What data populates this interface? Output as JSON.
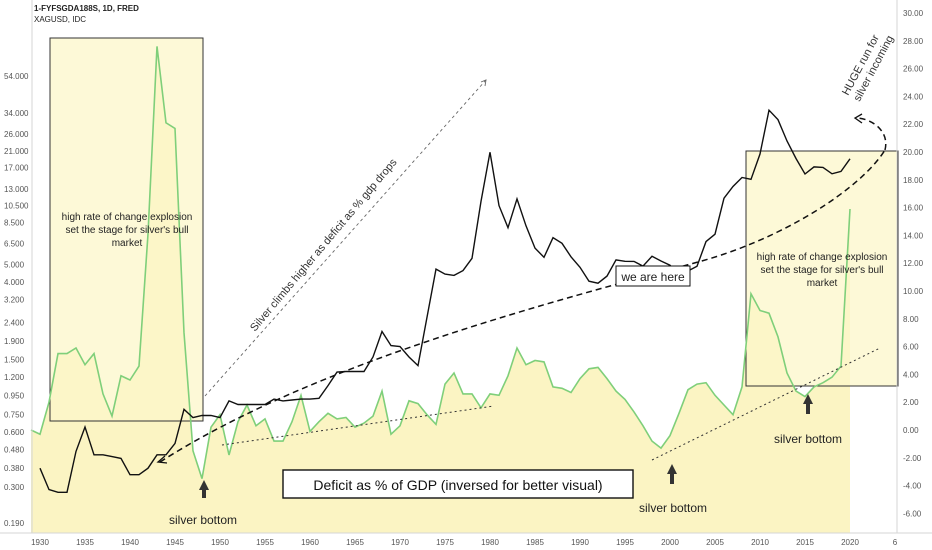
{
  "header": {
    "title": "1-FYFSGDA188S, 1D, FRED",
    "subtitle": "XAGUSD, IDC"
  },
  "colors": {
    "deficit_line": "#7fcf7a",
    "deficit_fill": "#fbf3bd",
    "silver_line": "#111111",
    "box_fill": "#fcf7c9",
    "box_stroke": "#333333"
  },
  "chart_data": {
    "type": "line",
    "x_ticks": [
      "1930",
      "1935",
      "1940",
      "1945",
      "1950",
      "1955",
      "1960",
      "1965",
      "1970",
      "1975",
      "1980",
      "1985",
      "1990",
      "1995",
      "2000",
      "2005",
      "2010",
      "2015",
      "2020",
      "6"
    ],
    "left_axis": {
      "scale": "log",
      "tick_labels": [
        "54.000",
        "34.000",
        "26.000",
        "21.000",
        "17.000",
        "13.000",
        "10.500",
        "8.500",
        "6.500",
        "5.000",
        "4.000",
        "3.200",
        "2.400",
        "1.900",
        "1.500",
        "1.200",
        "0.950",
        "0.750",
        "0.600",
        "0.480",
        "0.380",
        "0.300",
        "0.190"
      ]
    },
    "right_axis": {
      "tick_labels": [
        "30.00",
        "28.00",
        "26.00",
        "24.00",
        "22.00",
        "20.00",
        "18.00",
        "16.00",
        "14.00",
        "12.00",
        "10.00",
        "8.00",
        "6.00",
        "4.00",
        "2.00",
        "0.00",
        "-2.00",
        "-4.00",
        "-6.00"
      ]
    },
    "series": [
      {
        "name": "XAGUSD",
        "points": [
          [
            1930,
            0.38
          ],
          [
            1931,
            0.29
          ],
          [
            1932,
            0.28
          ],
          [
            1933,
            0.28
          ],
          [
            1934,
            0.47
          ],
          [
            1935,
            0.64
          ],
          [
            1936,
            0.45
          ],
          [
            1937,
            0.45
          ],
          [
            1938,
            0.44
          ],
          [
            1939,
            0.43
          ],
          [
            1940,
            0.35
          ],
          [
            1941,
            0.35
          ],
          [
            1942,
            0.38
          ],
          [
            1943,
            0.45
          ],
          [
            1944,
            0.45
          ],
          [
            1945,
            0.52
          ],
          [
            1946,
            0.8
          ],
          [
            1947,
            0.72
          ],
          [
            1948,
            0.74
          ],
          [
            1949,
            0.74
          ],
          [
            1950,
            0.72
          ],
          [
            1951,
            0.89
          ],
          [
            1952,
            0.85
          ],
          [
            1953,
            0.85
          ],
          [
            1954,
            0.85
          ],
          [
            1955,
            0.85
          ],
          [
            1956,
            0.91
          ],
          [
            1957,
            0.89
          ],
          [
            1958,
            0.9
          ],
          [
            1959,
            0.91
          ],
          [
            1960,
            0.91
          ],
          [
            1961,
            0.92
          ],
          [
            1962,
            1.08
          ],
          [
            1963,
            1.28
          ],
          [
            1964,
            1.29
          ],
          [
            1965,
            1.29
          ],
          [
            1966,
            1.29
          ],
          [
            1967,
            1.55
          ],
          [
            1968,
            2.14
          ],
          [
            1969,
            1.79
          ],
          [
            1970,
            1.77
          ],
          [
            1971,
            1.55
          ],
          [
            1972,
            1.39
          ],
          [
            1973,
            2.56
          ],
          [
            1974,
            4.71
          ],
          [
            1975,
            4.42
          ],
          [
            1976,
            4.35
          ],
          [
            1977,
            4.62
          ],
          [
            1978,
            5.4
          ],
          [
            1979,
            11.09
          ],
          [
            1980,
            20.63
          ],
          [
            1981,
            10.52
          ],
          [
            1982,
            7.95
          ],
          [
            1983,
            11.44
          ],
          [
            1984,
            8.14
          ],
          [
            1985,
            6.14
          ],
          [
            1986,
            5.47
          ],
          [
            1987,
            7.01
          ],
          [
            1988,
            6.53
          ],
          [
            1989,
            5.5
          ],
          [
            1990,
            4.82
          ],
          [
            1991,
            4.04
          ],
          [
            1992,
            3.94
          ],
          [
            1993,
            4.31
          ],
          [
            1994,
            5.29
          ],
          [
            1995,
            5.2
          ],
          [
            1996,
            5.19
          ],
          [
            1997,
            4.89
          ],
          [
            1998,
            5.54
          ],
          [
            1999,
            5.22
          ],
          [
            2000,
            4.95
          ],
          [
            2001,
            4.37
          ],
          [
            2002,
            4.6
          ],
          [
            2003,
            4.88
          ],
          [
            2004,
            6.67
          ],
          [
            2005,
            7.32
          ],
          [
            2006,
            11.55
          ],
          [
            2007,
            13.38
          ],
          [
            2008,
            14.99
          ],
          [
            2009,
            14.67
          ],
          [
            2010,
            20.19
          ],
          [
            2011,
            35.12
          ],
          [
            2012,
            31.15
          ],
          [
            2013,
            23.79
          ],
          [
            2014,
            19.08
          ],
          [
            2015,
            15.68
          ],
          [
            2016,
            17.14
          ],
          [
            2017,
            17.05
          ],
          [
            2018,
            15.71
          ],
          [
            2019,
            16.21
          ],
          [
            2020,
            19.0
          ]
        ]
      },
      {
        "name": "Deficit as % of GDP (inversed)",
        "points": [
          [
            1929,
            0.0
          ],
          [
            1930,
            -0.3
          ],
          [
            1931,
            2.0
          ],
          [
            1932,
            5.5
          ],
          [
            1933,
            5.5
          ],
          [
            1934,
            5.9
          ],
          [
            1935,
            4.7
          ],
          [
            1936,
            5.5
          ],
          [
            1937,
            2.6
          ],
          [
            1938,
            1.0
          ],
          [
            1939,
            3.9
          ],
          [
            1940,
            3.6
          ],
          [
            1941,
            4.6
          ],
          [
            1942,
            14.1
          ],
          [
            1943,
            27.6
          ],
          [
            1944,
            22.1
          ],
          [
            1945,
            21.7
          ],
          [
            1946,
            7.0
          ],
          [
            1947,
            -1.5
          ],
          [
            1948,
            -3.5
          ],
          [
            1949,
            0.2
          ],
          [
            1950,
            1.1
          ],
          [
            1951,
            -1.8
          ],
          [
            1952,
            0.6
          ],
          [
            1953,
            1.8
          ],
          [
            1954,
            0.3
          ],
          [
            1955,
            0.8
          ],
          [
            1956,
            -0.8
          ],
          [
            1957,
            -0.8
          ],
          [
            1958,
            0.6
          ],
          [
            1959,
            2.5
          ],
          [
            1960,
            -0.1
          ],
          [
            1961,
            0.6
          ],
          [
            1962,
            1.2
          ],
          [
            1963,
            0.8
          ],
          [
            1964,
            0.9
          ],
          [
            1965,
            0.2
          ],
          [
            1966,
            0.5
          ],
          [
            1967,
            1.0
          ],
          [
            1968,
            2.8
          ],
          [
            1969,
            -0.3
          ],
          [
            1970,
            0.3
          ],
          [
            1971,
            2.1
          ],
          [
            1972,
            1.9
          ],
          [
            1973,
            1.1
          ],
          [
            1974,
            0.4
          ],
          [
            1975,
            3.3
          ],
          [
            1976,
            4.1
          ],
          [
            1977,
            2.6
          ],
          [
            1978,
            2.6
          ],
          [
            1979,
            1.6
          ],
          [
            1980,
            2.6
          ],
          [
            1981,
            2.5
          ],
          [
            1982,
            3.9
          ],
          [
            1983,
            5.9
          ],
          [
            1984,
            4.7
          ],
          [
            1985,
            5.0
          ],
          [
            1986,
            4.9
          ],
          [
            1987,
            3.1
          ],
          [
            1988,
            3.0
          ],
          [
            1989,
            2.7
          ],
          [
            1990,
            3.7
          ],
          [
            1991,
            4.4
          ],
          [
            1992,
            4.5
          ],
          [
            1993,
            3.7
          ],
          [
            1994,
            2.8
          ],
          [
            1995,
            2.2
          ],
          [
            1996,
            1.3
          ],
          [
            1997,
            0.3
          ],
          [
            1998,
            -0.8
          ],
          [
            1999,
            -1.3
          ],
          [
            2000,
            -0.4
          ],
          [
            2001,
            1.2
          ],
          [
            2002,
            2.9
          ],
          [
            2003,
            3.3
          ],
          [
            2004,
            3.4
          ],
          [
            2005,
            2.5
          ],
          [
            2006,
            1.8
          ],
          [
            2007,
            1.1
          ],
          [
            2008,
            3.1
          ],
          [
            2009,
            9.8
          ],
          [
            2010,
            8.6
          ],
          [
            2011,
            8.4
          ],
          [
            2012,
            6.7
          ],
          [
            2013,
            4.1
          ],
          [
            2014,
            2.8
          ],
          [
            2015,
            2.4
          ],
          [
            2016,
            3.1
          ],
          [
            2017,
            3.4
          ],
          [
            2018,
            3.8
          ],
          [
            2019,
            4.6
          ],
          [
            2020,
            15.9
          ]
        ]
      }
    ],
    "annotations": {
      "deficit_label": "Deficit as % of GDP (inversed for better visual)",
      "box_note_left": [
        "high rate of change explosion",
        "set the stage for silver's bull",
        "market"
      ],
      "box_note_right": [
        "high rate of change explosion",
        "set the stage for silver's bull",
        "market"
      ],
      "silver_bottom": "silver bottom",
      "we_are_here": "we are here",
      "diag_label": "Silver climbs higher as deficit as % gdp drops",
      "huge_run": [
        "HUGE run for",
        "silver incoming"
      ]
    }
  }
}
